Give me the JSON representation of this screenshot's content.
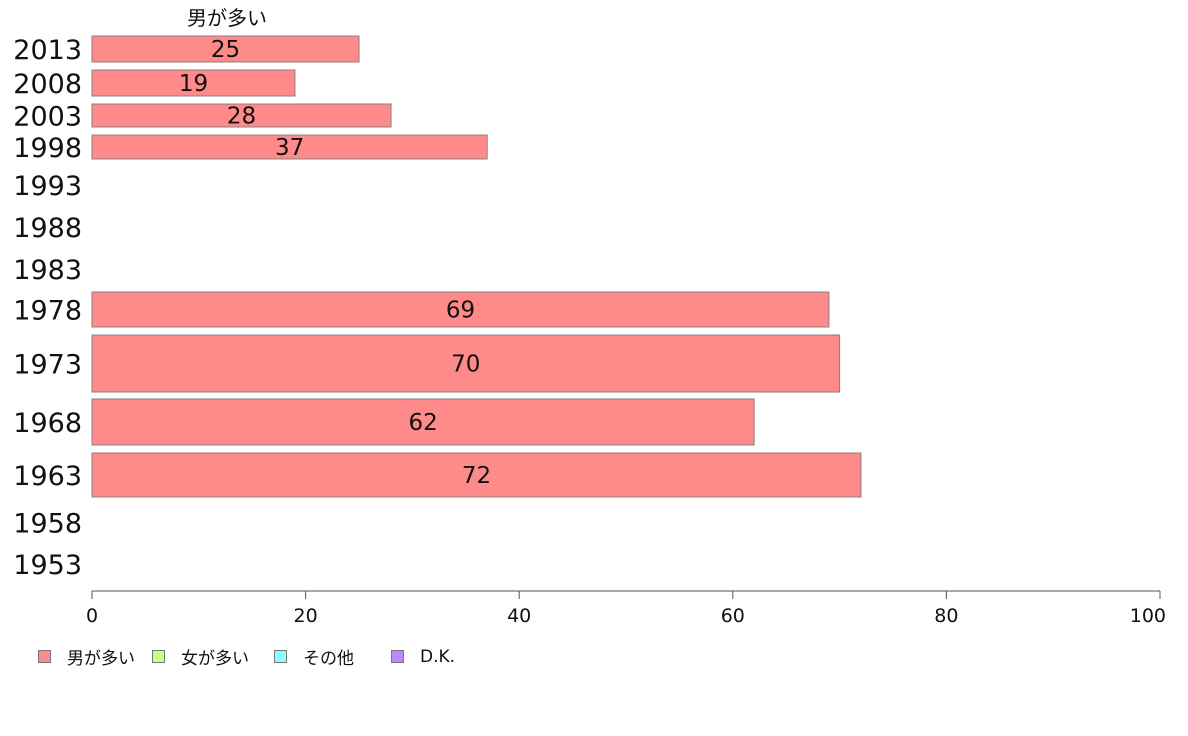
{
  "chart_data": {
    "type": "bar",
    "orientation": "horizontal",
    "categories": [
      "2013",
      "2008",
      "2003",
      "1998",
      "1993",
      "1988",
      "1983",
      "1978",
      "1973",
      "1968",
      "1963",
      "1958",
      "1953"
    ],
    "series": [
      {
        "name": "男が多い",
        "values": [
          25,
          19,
          28,
          37,
          null,
          null,
          null,
          69,
          70,
          62,
          72,
          null,
          null
        ],
        "color": "#ff8a8a"
      },
      {
        "name": "女が多い",
        "values": [
          null,
          null,
          null,
          null,
          null,
          null,
          null,
          null,
          null,
          null,
          null,
          null,
          null
        ],
        "color": "#c8ff8a"
      },
      {
        "name": "その他",
        "values": [
          null,
          null,
          null,
          null,
          null,
          null,
          null,
          null,
          null,
          null,
          null,
          null,
          null
        ],
        "color": "#8affff"
      },
      {
        "name": "D.K.",
        "values": [
          null,
          null,
          null,
          null,
          null,
          null,
          null,
          null,
          null,
          null,
          null,
          null,
          null
        ],
        "color": "#bb88ff"
      }
    ],
    "series_header": "男が多い",
    "xlim": [
      0,
      100
    ],
    "xticks": [
      "0",
      "20",
      "40",
      "60",
      "80",
      "100"
    ],
    "xlabel": "",
    "ylabel": "",
    "grid": false,
    "legend_position": "bottom-left"
  }
}
